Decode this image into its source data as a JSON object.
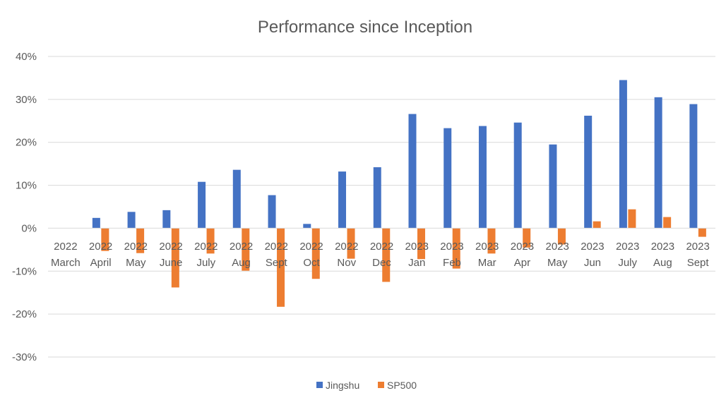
{
  "chart_data": {
    "type": "bar",
    "title": "Performance since Inception",
    "xlabel": "",
    "ylabel": "",
    "ylim": [
      -30,
      40
    ],
    "yticks": [
      "40%",
      "30%",
      "20%",
      "10%",
      "0%",
      "-10%",
      "-20%",
      "-30%"
    ],
    "ytick_values": [
      40,
      30,
      20,
      10,
      0,
      -10,
      -20,
      -30
    ],
    "categories": [
      [
        "2022",
        "March"
      ],
      [
        "2022",
        "April"
      ],
      [
        "2022",
        "May"
      ],
      [
        "2022",
        "June"
      ],
      [
        "2022",
        "July"
      ],
      [
        "2022",
        "Aug"
      ],
      [
        "2022",
        "Sept"
      ],
      [
        "2022",
        "Oct"
      ],
      [
        "2022",
        "Nov"
      ],
      [
        "2022",
        "Dec"
      ],
      [
        "2023",
        "Jan"
      ],
      [
        "2023",
        "Feb"
      ],
      [
        "2023",
        "Mar"
      ],
      [
        "2023",
        "Apr"
      ],
      [
        "2023",
        "May"
      ],
      [
        "2023",
        "Jun"
      ],
      [
        "2023",
        "July"
      ],
      [
        "2023",
        "Aug"
      ],
      [
        "2023",
        "Sept"
      ]
    ],
    "series": [
      {
        "name": "Jingshu",
        "color": "#4472c4",
        "values": [
          0,
          2.4,
          3.8,
          4.2,
          10.8,
          13.6,
          7.7,
          1.0,
          13.2,
          14.2,
          26.6,
          23.3,
          23.8,
          24.6,
          19.5,
          26.2,
          34.5,
          30.5,
          28.9
        ]
      },
      {
        "name": "SP500",
        "color": "#ed7d31",
        "values": [
          0,
          -5.3,
          -5.8,
          -13.8,
          -5.9,
          -9.9,
          -18.3,
          -11.8,
          -7.1,
          -12.5,
          -7.2,
          -9.4,
          -5.9,
          -4.5,
          -3.8,
          1.6,
          4.4,
          2.6,
          -2.0
        ]
      }
    ],
    "grid": true,
    "legend": "bottom"
  }
}
